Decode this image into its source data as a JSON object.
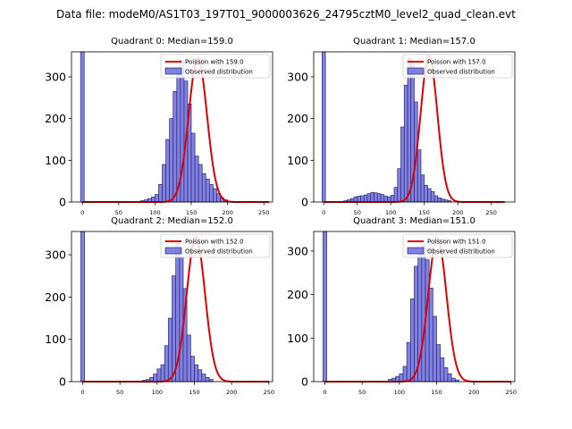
{
  "figure_title": "Data file: modeM0/AS1T03_197T01_9000003626_24795cztM0_level2_quad_clean.evt",
  "colors": {
    "bar_fill": "#6b6bdf",
    "bar_edge": "#2b2b6e",
    "poisson_line": "#e00000"
  },
  "chart_data": [
    {
      "type": "bar",
      "title": "Quadrant 0: Median=159.0",
      "xlim": [
        -15,
        262
      ],
      "ylim": [
        0,
        360
      ],
      "xticks": [
        0,
        50,
        100,
        150,
        200,
        250
      ],
      "yticks": [
        0,
        100,
        200,
        300
      ],
      "bin_width": 5,
      "zero_bin": {
        "x": 0,
        "value": 360
      },
      "bins_start": 80,
      "values": [
        3,
        5,
        8,
        12,
        18,
        42,
        90,
        150,
        200,
        265,
        320,
        340,
        290,
        235,
        165,
        110,
        90,
        68,
        55,
        42,
        32,
        20,
        10,
        5
      ],
      "poisson_mean": 159.0,
      "poisson_peak": 345,
      "legend": [
        "Poisson with 159.0",
        "Observed distribution"
      ]
    },
    {
      "type": "bar",
      "title": "Quadrant 1: Median=157.0",
      "xlim": [
        -15,
        285
      ],
      "ylim": [
        0,
        360
      ],
      "xticks": [
        0,
        50,
        100,
        150,
        200,
        250
      ],
      "yticks": [
        0,
        100,
        200,
        300
      ],
      "bin_width": 5,
      "zero_bin": {
        "x": 0,
        "value": 360
      },
      "bins_start": 30,
      "values": [
        3,
        5,
        8,
        12,
        14,
        15,
        17,
        20,
        23,
        22,
        20,
        18,
        14,
        12,
        16,
        35,
        80,
        180,
        280,
        345,
        330,
        240,
        125,
        65,
        40,
        32,
        25,
        15,
        10,
        7,
        5,
        3
      ],
      "poisson_mean": 157.0,
      "poisson_peak": 350,
      "legend": [
        "Poisson with 157.0",
        "Observed distribution"
      ]
    },
    {
      "type": "bar",
      "title": "Quadrant 2: Median=152.0",
      "xlim": [
        -15,
        255
      ],
      "ylim": [
        0,
        355
      ],
      "xticks": [
        0,
        50,
        100,
        150,
        200,
        250
      ],
      "yticks": [
        0,
        100,
        200,
        300
      ],
      "bin_width": 5,
      "zero_bin": {
        "x": 0,
        "value": 355
      },
      "bins_start": 80,
      "values": [
        3,
        5,
        10,
        18,
        30,
        40,
        85,
        150,
        250,
        335,
        295,
        220,
        110,
        60,
        40,
        28,
        18,
        10,
        5
      ],
      "poisson_mean": 152.0,
      "poisson_peak": 342,
      "legend": [
        "Poisson with 152.0",
        "Observed distribution"
      ]
    },
    {
      "type": "bar",
      "title": "Quadrant 3: Median=151.0",
      "xlim": [
        -15,
        255
      ],
      "ylim": [
        0,
        345
      ],
      "xticks": [
        0,
        50,
        100,
        150,
        200,
        250
      ],
      "yticks": [
        0,
        100,
        200,
        300
      ],
      "bin_width": 5,
      "zero_bin": {
        "x": 0,
        "value": 345
      },
      "bins_start": 85,
      "values": [
        5,
        8,
        12,
        18,
        35,
        90,
        190,
        265,
        295,
        315,
        280,
        215,
        150,
        85,
        55,
        32,
        18,
        8,
        4
      ],
      "poisson_mean": 151.0,
      "poisson_peak": 330,
      "legend": [
        "Poisson with 151.0",
        "Observed distribution"
      ]
    }
  ]
}
